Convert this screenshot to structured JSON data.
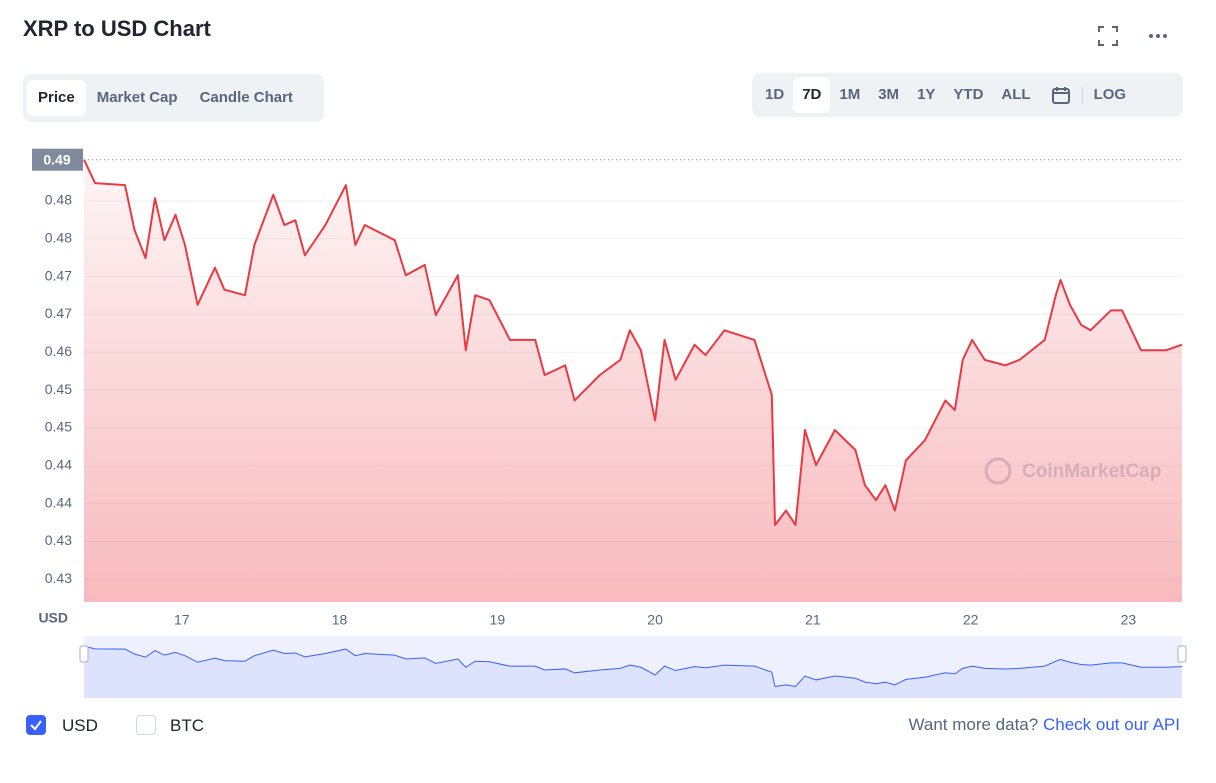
{
  "header": {
    "title": "XRP to USD Chart"
  },
  "tabs": [
    "Price",
    "Market Cap",
    "Candle Chart"
  ],
  "ranges": [
    "1D",
    "7D",
    "1M",
    "3M",
    "1Y",
    "YTD",
    "ALL"
  ],
  "log_button": "LOG",
  "currencies": [
    "USD",
    "BTC"
  ],
  "footer": {
    "text": "Want more data?",
    "link": "Check out our API"
  },
  "watermark": "CoinMarketCap",
  "chart_data": {
    "type": "line",
    "y_axis_label": "USD",
    "color": "#ea3943",
    "grid": true,
    "price_marker": {
      "value": 0.4875,
      "label": "0.49"
    },
    "xlim": [
      16.38,
      23.34
    ],
    "xticks": [
      17,
      18,
      19,
      20,
      21,
      22,
      23
    ],
    "ylim": [
      0.4232,
      0.4892
    ],
    "yticks": [
      {
        "value": 0.4265,
        "label": "0.43"
      },
      {
        "value": 0.432,
        "label": "0.43"
      },
      {
        "value": 0.4375,
        "label": "0.44"
      },
      {
        "value": 0.443,
        "label": "0.44"
      },
      {
        "value": 0.4485,
        "label": "0.45"
      },
      {
        "value": 0.454,
        "label": "0.45"
      },
      {
        "value": 0.4595,
        "label": "0.46"
      },
      {
        "value": 0.465,
        "label": "0.47"
      },
      {
        "value": 0.4705,
        "label": "0.47"
      },
      {
        "value": 0.476,
        "label": "0.48"
      },
      {
        "value": 0.4815,
        "label": "0.48"
      }
    ],
    "x": [
      16.38,
      16.45,
      16.64,
      16.7,
      16.77,
      16.83,
      16.89,
      16.96,
      17.02,
      17.1,
      17.21,
      17.27,
      17.4,
      17.46,
      17.58,
      17.65,
      17.72,
      17.78,
      17.91,
      18.04,
      18.1,
      18.16,
      18.35,
      18.42,
      18.54,
      18.61,
      18.75,
      18.8,
      18.86,
      18.95,
      19.08,
      19.24,
      19.3,
      19.43,
      19.49,
      19.65,
      19.78,
      19.84,
      19.91,
      20.0,
      20.06,
      20.13,
      20.25,
      20.32,
      20.44,
      20.63,
      20.7,
      20.74,
      20.76,
      20.83,
      20.89,
      20.95,
      21.02,
      21.14,
      21.27,
      21.33,
      21.4,
      21.46,
      21.52,
      21.59,
      21.71,
      21.84,
      21.9,
      21.95,
      22.01,
      22.09,
      22.22,
      22.31,
      22.47,
      22.54,
      22.57,
      22.63,
      22.7,
      22.76,
      22.89,
      22.96,
      23.08,
      23.24,
      23.34
    ],
    "series": [
      {
        "name": "Price",
        "color": "#ea3943",
        "values": [
          0.4875,
          0.4841,
          0.4838,
          0.4773,
          0.4732,
          0.4819,
          0.4758,
          0.4795,
          0.4751,
          0.4664,
          0.4718,
          0.4686,
          0.4678,
          0.4751,
          0.4824,
          0.478,
          0.4787,
          0.4736,
          0.478,
          0.4838,
          0.4751,
          0.478,
          0.4758,
          0.4707,
          0.4722,
          0.4649,
          0.4707,
          0.4598,
          0.4678,
          0.4671,
          0.4613,
          0.4613,
          0.4562,
          0.4576,
          0.4525,
          0.4562,
          0.4584,
          0.4627,
          0.4598,
          0.4496,
          0.4613,
          0.4555,
          0.4606,
          0.4591,
          0.4627,
          0.4613,
          0.4562,
          0.4533,
          0.4344,
          0.4365,
          0.4344,
          0.4482,
          0.4431,
          0.4482,
          0.4453,
          0.4402,
          0.438,
          0.4402,
          0.4365,
          0.4438,
          0.4467,
          0.4525,
          0.4511,
          0.4584,
          0.4613,
          0.4584,
          0.4576,
          0.4584,
          0.4613,
          0.4678,
          0.47,
          0.4664,
          0.4635,
          0.4627,
          0.4656,
          0.4656,
          0.4598,
          0.4598,
          0.4606
        ]
      }
    ]
  }
}
